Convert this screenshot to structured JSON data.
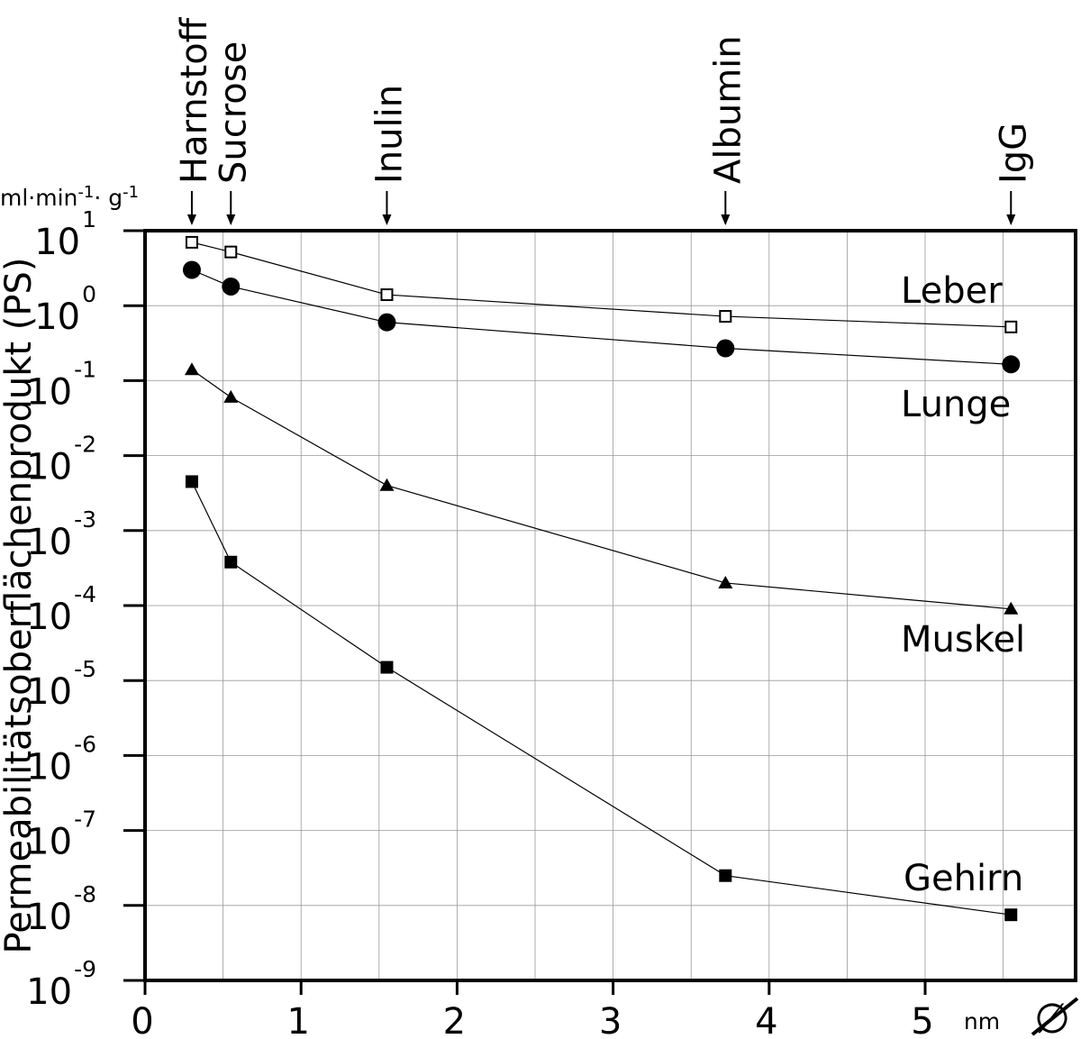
{
  "chart_data": {
    "type": "line",
    "ylabel": "Permeabilitätsoberflächenprodukt (PS)",
    "yunit": "ml·min-1· g-1",
    "xunit": "nm",
    "xsymbol": "∅",
    "xlim": [
      0,
      6
    ],
    "ylim_exponents": [
      -9,
      1
    ],
    "yscale": "log",
    "grid": true,
    "x_ticks": [
      "0",
      "1",
      "2",
      "3",
      "4",
      "5"
    ],
    "y_tick_exponents": [
      "1",
      "0",
      "-1",
      "-2",
      "-3",
      "-4",
      "-5",
      "-6",
      "-7",
      "-8",
      "-9"
    ],
    "y_tick_base": "10",
    "molecules": [
      {
        "name": "Harnstoff",
        "x": 0.3
      },
      {
        "name": "Sucrose",
        "x": 0.55
      },
      {
        "name": "Inulin",
        "x": 1.55
      },
      {
        "name": "Albumin",
        "x": 3.72
      },
      {
        "name": "IgG",
        "x": 5.55
      }
    ],
    "series": [
      {
        "name": "Leber",
        "marker": "open-square",
        "x": [
          0.3,
          0.55,
          1.55,
          3.72,
          5.55
        ],
        "y": [
          7.0,
          5.2,
          1.4,
          0.72,
          0.52
        ]
      },
      {
        "name": "Lunge",
        "marker": "filled-circle",
        "x": [
          0.3,
          0.55,
          1.55,
          3.72,
          5.55
        ],
        "y": [
          3.0,
          1.8,
          0.6,
          0.27,
          0.165
        ]
      },
      {
        "name": "Muskel",
        "marker": "filled-triangle",
        "x": [
          0.3,
          0.55,
          1.55,
          3.72,
          5.55
        ],
        "y": [
          0.14,
          0.06,
          0.004,
          0.0002,
          9e-05
        ]
      },
      {
        "name": "Gehirn",
        "marker": "filled-square",
        "x": [
          0.3,
          0.55,
          1.55,
          3.72,
          5.55
        ],
        "y": [
          0.0045,
          0.00038,
          1.5e-05,
          2.5e-08,
          7.5e-09
        ]
      }
    ]
  }
}
